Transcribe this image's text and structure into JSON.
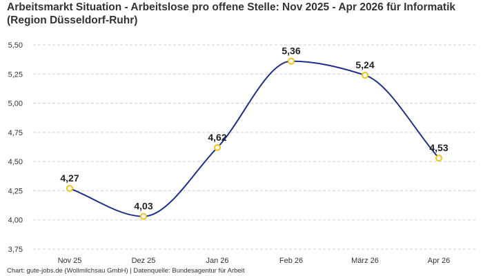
{
  "chart_data": {
    "type": "line",
    "title": "Arbeitsmarkt Situation - Arbeitslose pro offene Stelle: Nov 2025 - Apr 2026 für Informatik (Region Düsseldorf-Ruhr)",
    "categories": [
      "Nov 25",
      "Dez 25",
      "Jan 26",
      "Feb 26",
      "März 26",
      "Apr 26"
    ],
    "series": [
      {
        "values": [
          4.27,
          4.03,
          4.62,
          5.36,
          5.24,
          4.53
        ],
        "labels": [
          "4,27",
          "4,03",
          "4,62",
          "5,36",
          "5,24",
          "4,53"
        ]
      }
    ],
    "y_ticks": [
      "3,75",
      "4,00",
      "4,25",
      "4,50",
      "4,75",
      "5,00",
      "5,25",
      "5,50"
    ],
    "ylim": [
      3.75,
      5.5
    ],
    "y_step": 0.25,
    "xlabel": "",
    "ylabel": "",
    "grid": "horizontal dashed",
    "smooth": true,
    "caption": "Chart: gute-jobs.de (Wollmilchsau GmbH) | Datenquelle: Bundesagentur für Arbeit",
    "colors": {
      "line": "#1f2d8c",
      "marker_stroke": "#f2c318",
      "marker_fill": "#ffffff",
      "grid": "#cfcfcf",
      "text": "#333333"
    }
  }
}
